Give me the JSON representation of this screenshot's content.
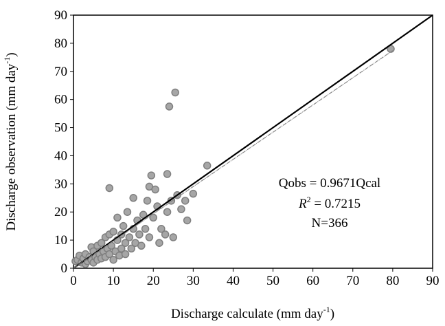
{
  "chart_data": {
    "type": "scatter",
    "xlabel": {
      "text": "Discharge calculate (mm day",
      "sup": "-1",
      "end": ")"
    },
    "ylabel": {
      "text": "Discharge observation (mm day",
      "sup": "-1",
      "end": ")"
    },
    "annotations": {
      "equation": "Qobs = 0.9671Qcal",
      "r2": {
        "text": "R",
        "sup": "2",
        "end": " = 0.7215"
      },
      "n": "N=366"
    },
    "xlim": [
      0,
      90
    ],
    "ylim": [
      0,
      90
    ],
    "xticks": [
      0,
      10,
      20,
      30,
      40,
      50,
      60,
      70,
      80,
      90
    ],
    "yticks": [
      0,
      10,
      20,
      30,
      40,
      50,
      60,
      70,
      80,
      90
    ],
    "grid": false,
    "series": [
      {
        "color": "#a6a6a6",
        "x": [
          0.5,
          1,
          1.5,
          2,
          2.5,
          3,
          3,
          3.5,
          4,
          4.5,
          4.5,
          5,
          5,
          5.5,
          6,
          6,
          6.5,
          7,
          7,
          7.5,
          8,
          8,
          8.5,
          9,
          9,
          9,
          9.5,
          10,
          10,
          10.5,
          11,
          11,
          11.5,
          12,
          12,
          12.5,
          13,
          13,
          13.5,
          14,
          14.5,
          15,
          15,
          15.5,
          16,
          16.5,
          17,
          17.5,
          18,
          18.5,
          19,
          19,
          19.5,
          20,
          20.5,
          21,
          21.5,
          22,
          23,
          23.5,
          23.5,
          24,
          24.5,
          25,
          25.5,
          26,
          27,
          28,
          28.5,
          30,
          33.5,
          79.5
        ],
        "y": [
          2.5,
          3,
          4.5,
          2,
          3.5,
          5,
          1.5,
          2.5,
          4,
          7.5,
          3,
          6,
          2,
          4,
          8,
          3,
          5,
          9,
          3.5,
          6,
          11,
          4,
          7,
          28.5,
          12,
          5,
          8,
          13,
          3,
          6,
          10,
          18,
          4.5,
          12,
          7,
          15,
          5,
          9,
          20,
          11,
          7,
          25,
          14,
          9,
          17,
          12,
          8,
          19,
          14,
          24,
          29,
          11,
          33,
          18,
          28,
          22,
          9,
          14,
          12,
          33.5,
          20,
          57.5,
          24,
          11,
          62.5,
          26,
          21,
          24,
          17,
          26.5,
          36.5,
          78
        ]
      }
    ],
    "lines": [
      {
        "color": "#000000",
        "x": [
          0,
          90
        ],
        "y": [
          0,
          90
        ]
      },
      {
        "color": "#888888",
        "x": [
          0,
          80
        ],
        "y": [
          0,
          77.4
        ]
      }
    ]
  }
}
